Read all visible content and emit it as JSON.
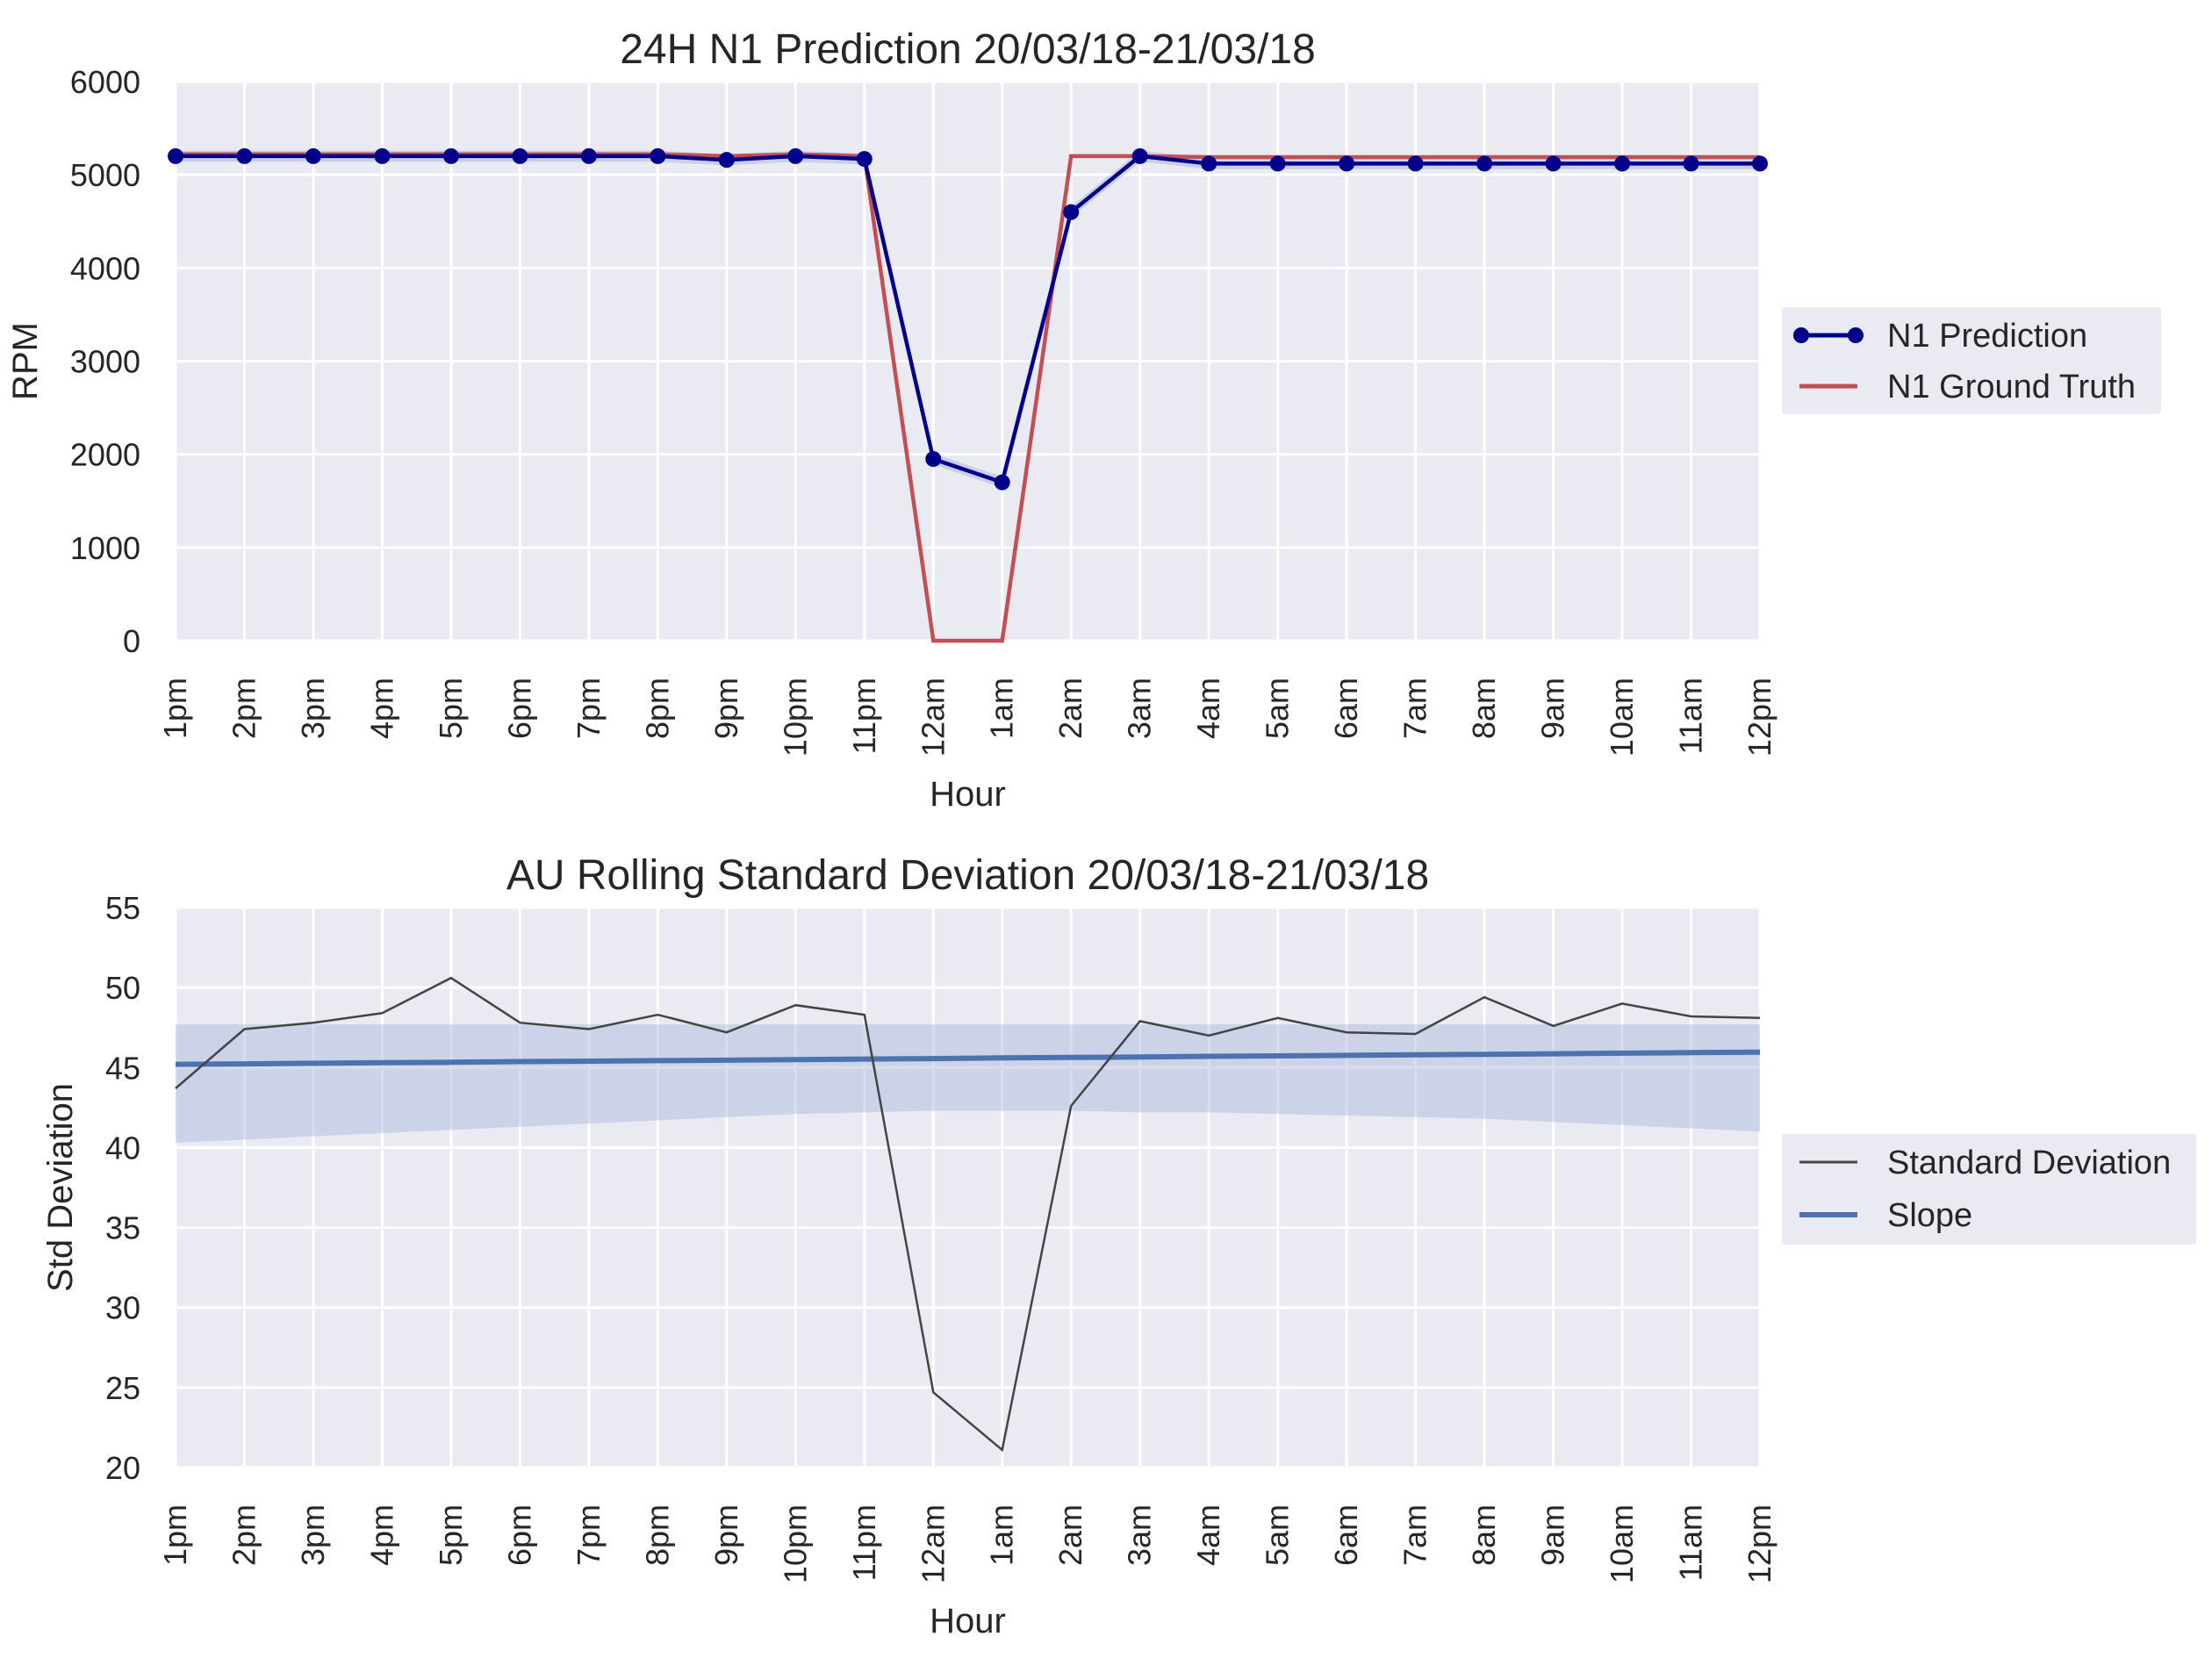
{
  "hours": [
    "1pm",
    "2pm",
    "3pm",
    "4pm",
    "5pm",
    "6pm",
    "7pm",
    "8pm",
    "9pm",
    "10pm",
    "11pm",
    "12am",
    "1am",
    "2am",
    "3am",
    "4am",
    "5am",
    "6am",
    "7am",
    "8am",
    "9am",
    "10am",
    "11am",
    "12pm"
  ],
  "colors": {
    "plot_bg": "#eaeaf2",
    "grid": "#ffffff",
    "prediction": "#00008b",
    "ground_truth": "#c44e52",
    "std_line": "#444444",
    "slope": "#4c72b0",
    "band": "#a9b6da",
    "text": "#262626"
  },
  "chart_data": [
    {
      "type": "line",
      "title": "24H N1 Prediction 20/03/18-21/03/18",
      "xlabel": "Hour",
      "ylabel": "RPM",
      "ylim": [
        0,
        6000
      ],
      "yticks": [
        0,
        1000,
        2000,
        3000,
        4000,
        5000,
        6000
      ],
      "grid": true,
      "legend": "right",
      "series": [
        {
          "name": "N1 Prediction",
          "marker": "circle",
          "values": [
            5200,
            5200,
            5200,
            5200,
            5200,
            5200,
            5200,
            5200,
            5160,
            5200,
            5170,
            1950,
            1700,
            4600,
            5200,
            5120,
            5120,
            5120,
            5120,
            5120,
            5120,
            5120,
            5120,
            5120
          ]
        },
        {
          "name": "N1 Ground Truth",
          "marker": "none",
          "values": [
            5220,
            5220,
            5220,
            5220,
            5220,
            5220,
            5220,
            5220,
            5200,
            5220,
            5200,
            0,
            0,
            5200,
            5200,
            5190,
            5190,
            5190,
            5190,
            5190,
            5190,
            5190,
            5190,
            5190
          ]
        }
      ]
    },
    {
      "type": "line",
      "title": "AU Rolling Standard Deviation 20/03/18-21/03/18",
      "xlabel": "Hour",
      "ylabel": "Std Deviation",
      "ylim": [
        20,
        55
      ],
      "yticks": [
        20,
        25,
        30,
        35,
        40,
        45,
        50,
        55
      ],
      "grid": true,
      "legend": "right",
      "series": [
        {
          "name": "Standard Deviation",
          "values": [
            43.7,
            47.4,
            47.8,
            48.4,
            50.6,
            47.8,
            47.4,
            48.3,
            47.2,
            48.9,
            48.3,
            24.7,
            21.1,
            42.6,
            47.9,
            47.0,
            48.1,
            47.2,
            47.1,
            49.4,
            47.6,
            49.0,
            48.2,
            48.1
          ]
        },
        {
          "name": "Slope",
          "values": [
            45.2,
            45.23,
            45.27,
            45.3,
            45.33,
            45.37,
            45.4,
            45.43,
            45.46,
            45.5,
            45.53,
            45.56,
            45.6,
            45.63,
            45.66,
            45.7,
            45.73,
            45.76,
            45.8,
            45.83,
            45.86,
            45.9,
            45.93,
            45.96
          ],
          "band_upper": [
            47.7,
            47.7,
            47.7,
            47.7,
            47.7,
            47.7,
            47.7,
            47.7,
            47.7,
            47.7,
            47.7,
            47.7,
            47.7,
            47.7,
            47.7,
            47.7,
            47.7,
            47.7,
            47.7,
            47.7,
            47.7,
            47.7,
            47.7,
            47.7
          ],
          "band_lower": [
            40.3,
            40.5,
            40.7,
            40.9,
            41.1,
            41.3,
            41.5,
            41.7,
            41.9,
            42.1,
            42.2,
            42.3,
            42.3,
            42.3,
            42.2,
            42.2,
            42.1,
            42.0,
            41.9,
            41.8,
            41.6,
            41.4,
            41.2,
            41.0
          ]
        }
      ]
    }
  ]
}
